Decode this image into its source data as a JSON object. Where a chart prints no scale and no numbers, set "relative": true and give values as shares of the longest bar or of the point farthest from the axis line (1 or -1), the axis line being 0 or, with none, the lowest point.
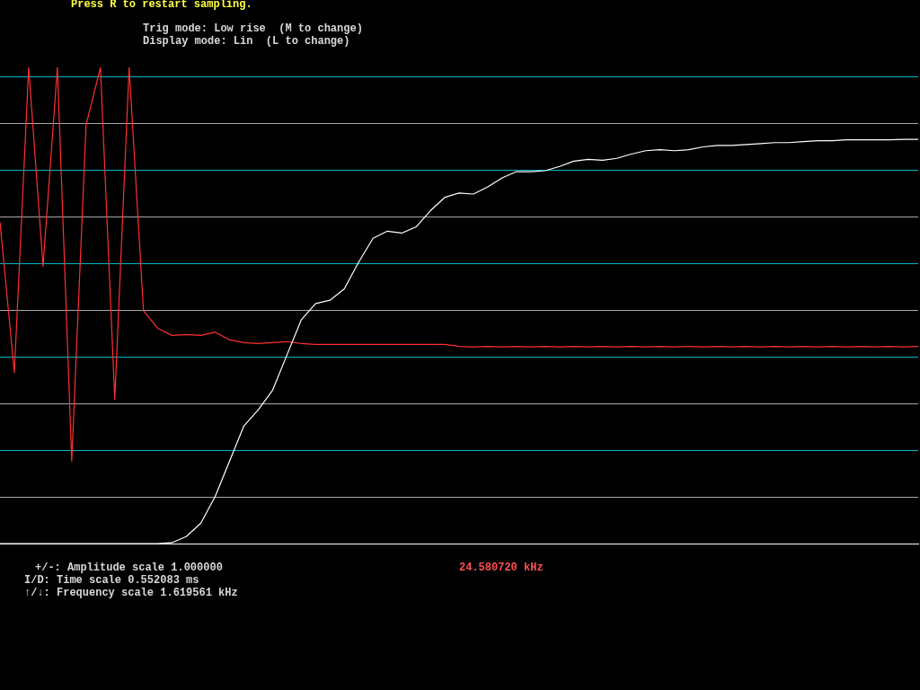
{
  "chart_data": {
    "type": "line",
    "relative": true,
    "ref_lines": [
      {
        "axis": "y",
        "value": 0.098,
        "color": "#a8a8a8"
      },
      {
        "axis": "y",
        "value": 0.196,
        "color": "#00b8c8"
      },
      {
        "axis": "y",
        "value": 0.294,
        "color": "#a8a8a8"
      },
      {
        "axis": "y",
        "value": 0.393,
        "color": "#00b8c8"
      },
      {
        "axis": "y",
        "value": 0.491,
        "color": "#a8a8a8"
      },
      {
        "axis": "y",
        "value": 0.589,
        "color": "#00b8c8"
      },
      {
        "axis": "y",
        "value": 0.687,
        "color": "#a8a8a8"
      },
      {
        "axis": "y",
        "value": 0.785,
        "color": "#00b8c8"
      },
      {
        "axis": "y",
        "value": 0.883,
        "color": "#a8a8a8"
      },
      {
        "axis": "y",
        "value": 0.981,
        "color": "#00b8c8"
      }
    ],
    "categories": [
      null,
      null,
      null,
      null,
      null,
      null,
      null,
      null,
      null,
      null,
      null,
      null,
      null,
      null,
      null,
      null,
      null,
      null,
      null,
      null,
      null,
      null,
      null,
      null,
      null,
      null,
      null,
      null,
      null,
      null,
      null,
      null,
      null,
      null,
      null,
      null,
      null,
      null,
      null,
      null,
      null,
      null,
      null,
      null,
      null,
      null,
      null,
      null,
      null,
      null,
      null,
      null,
      null,
      null,
      null,
      null,
      null,
      null,
      null,
      null,
      null,
      null,
      null,
      null,
      null
    ],
    "series": [
      {
        "color": "#ffffff",
        "values": [
          0,
          0,
          0,
          0,
          0,
          0,
          0,
          0,
          0,
          0,
          0,
          0,
          0.002,
          0.015,
          0.043,
          0.099,
          0.173,
          0.247,
          0.281,
          0.322,
          0.396,
          0.47,
          0.504,
          0.511,
          0.535,
          0.591,
          0.641,
          0.656,
          0.652,
          0.665,
          0.699,
          0.727,
          0.736,
          0.734,
          0.749,
          0.768,
          0.781,
          0.781,
          0.783,
          0.792,
          0.803,
          0.807,
          0.805,
          0.809,
          0.818,
          0.825,
          0.827,
          0.825,
          0.827,
          0.833,
          0.836,
          0.836,
          0.838,
          0.84,
          0.842,
          0.842,
          0.844,
          0.846,
          0.846,
          0.848,
          0.848,
          0.848,
          0.848,
          0.849,
          0.849
        ]
      },
      {
        "color": "#ff3030",
        "values": [
          0.675,
          0.359,
          1,
          0.582,
          1,
          0.173,
          0.879,
          1,
          0.303,
          1,
          0.489,
          0.452,
          0.437,
          0.439,
          0.437,
          0.444,
          0.428,
          0.422,
          0.42,
          0.422,
          0.424,
          0.42,
          0.418,
          0.418,
          0.418,
          0.418,
          0.418,
          0.418,
          0.418,
          0.418,
          0.418,
          0.418,
          0.414,
          0.413,
          0.414,
          0.413,
          0.414,
          0.413,
          0.414,
          0.413,
          0.414,
          0.413,
          0.414,
          0.413,
          0.414,
          0.413,
          0.414,
          0.413,
          0.414,
          0.413,
          0.414,
          0.413,
          0.414,
          0.413,
          0.414,
          0.413,
          0.414,
          0.413,
          0.414,
          0.413,
          0.414,
          0.413,
          0.414,
          0.413,
          0.414
        ]
      }
    ],
    "annotations": [
      "Press R to restart sampling.",
      "Trig mode: Low rise  (M to change)",
      "Display mode: Lin  (L to change)",
      "+/-: Amplitude scale 1.000000",
      "I/D: Time scale 0.552083 ms",
      "↑/↓: Frequency scale 1.619561 kHz",
      "24.580720 kHz"
    ]
  }
}
